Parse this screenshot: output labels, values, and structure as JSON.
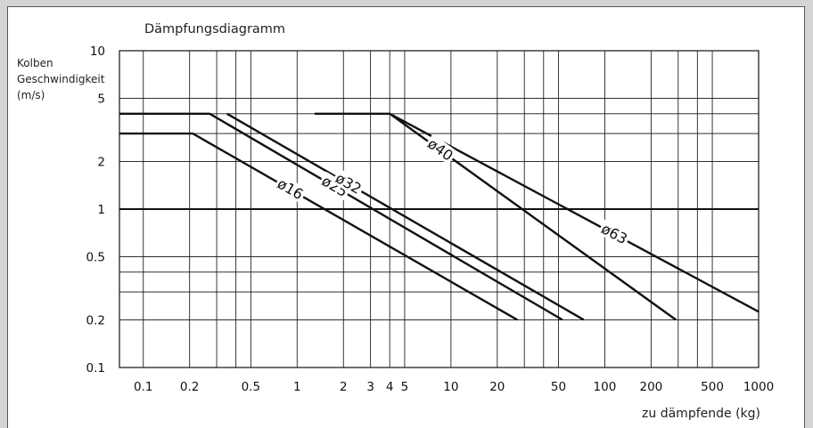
{
  "chart_data": {
    "type": "line",
    "title": "Dämpfungsdiagramm",
    "ylabel": [
      "Kolben",
      "Geschwindigkeit",
      "(m/s)"
    ],
    "xlabel": "zu dämpfende (kg)",
    "xscale": "log",
    "yscale": "log",
    "xlim": [
      0.07,
      1000
    ],
    "ylim": [
      0.1,
      10
    ],
    "grid": true,
    "x_ticks": [
      {
        "v": 0.1,
        "t": "0.1"
      },
      {
        "v": 0.2,
        "t": "0.2"
      },
      {
        "v": 0.5,
        "t": "0.5"
      },
      {
        "v": 1,
        "t": "1"
      },
      {
        "v": 2,
        "t": "2"
      },
      {
        "v": 3,
        "t": "3"
      },
      {
        "v": 4,
        "t": "4"
      },
      {
        "v": 5,
        "t": "5"
      },
      {
        "v": 10,
        "t": "10"
      },
      {
        "v": 20,
        "t": "20"
      },
      {
        "v": 50,
        "t": "50"
      },
      {
        "v": 100,
        "t": "100"
      },
      {
        "v": 200,
        "t": "200"
      },
      {
        "v": 500,
        "t": "500"
      },
      {
        "v": 1000,
        "t": "1000"
      }
    ],
    "x_grid": [
      0.1,
      0.2,
      0.3,
      0.4,
      0.5,
      1,
      2,
      3,
      4,
      5,
      10,
      20,
      30,
      40,
      50,
      100,
      200,
      300,
      400,
      500,
      1000
    ],
    "y_ticks": [
      {
        "v": 0.1,
        "t": "0.1"
      },
      {
        "v": 0.2,
        "t": "0.2"
      },
      {
        "v": 0.5,
        "t": "0.5"
      },
      {
        "v": 1,
        "t": "1"
      },
      {
        "v": 2,
        "t": "2"
      },
      {
        "v": 5,
        "t": "5"
      },
      {
        "v": 10,
        "t": "10"
      }
    ],
    "y_grid": [
      0.1,
      0.2,
      0.3,
      0.4,
      0.5,
      1,
      2,
      3,
      4,
      5,
      10
    ],
    "y_grid_major": [
      1
    ],
    "series": [
      {
        "name": "ø16",
        "points": [
          [
            0.07,
            3
          ],
          [
            0.21,
            3
          ],
          [
            27,
            0.2
          ]
        ],
        "label_x": 0.9
      },
      {
        "name": "ø25",
        "points": [
          [
            0.07,
            4
          ],
          [
            0.27,
            4
          ],
          [
            53,
            0.2
          ]
        ],
        "label_x": 1.75
      },
      {
        "name": "ø32",
        "points": [
          [
            0.35,
            4
          ],
          [
            73,
            0.2
          ]
        ],
        "label_x": 2.15
      },
      {
        "name": "ø40",
        "points": [
          [
            1.3,
            4
          ],
          [
            4,
            4
          ],
          [
            290,
            0.2
          ]
        ],
        "label_x": 8.5
      },
      {
        "name": "ø63",
        "points": [
          [
            4,
            4
          ],
          [
            1000,
            0.225
          ]
        ],
        "label_x": 115
      }
    ]
  }
}
